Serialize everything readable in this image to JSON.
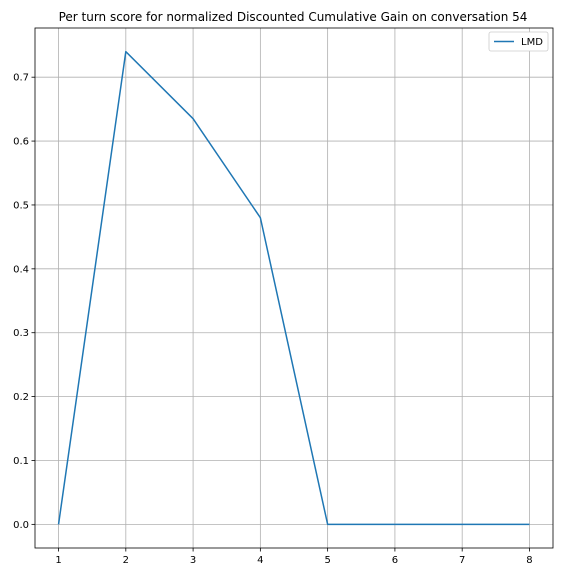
{
  "chart_data": {
    "type": "line",
    "title": "Per turn score for normalized Discounted Cumulative Gain on conversation 54",
    "xlabel": "",
    "ylabel": "",
    "x": [
      1,
      2,
      3,
      4,
      5,
      6,
      7,
      8
    ],
    "series": [
      {
        "name": "LMD",
        "values": [
          0.0,
          0.74,
          0.635,
          0.48,
          0.0,
          0.0,
          0.0,
          0.0
        ],
        "color": "#1f77b4"
      }
    ],
    "xlim": [
      0.65,
      8.35
    ],
    "ylim": [
      -0.037,
      0.777
    ],
    "xticks": [
      1,
      2,
      3,
      4,
      5,
      6,
      7,
      8
    ],
    "yticks": [
      0.0,
      0.1,
      0.2,
      0.3,
      0.4,
      0.5,
      0.6,
      0.7
    ],
    "ytick_labels": [
      "0.0",
      "0.1",
      "0.2",
      "0.3",
      "0.4",
      "0.5",
      "0.6",
      "0.7"
    ],
    "grid": true,
    "legend": "top-right"
  }
}
